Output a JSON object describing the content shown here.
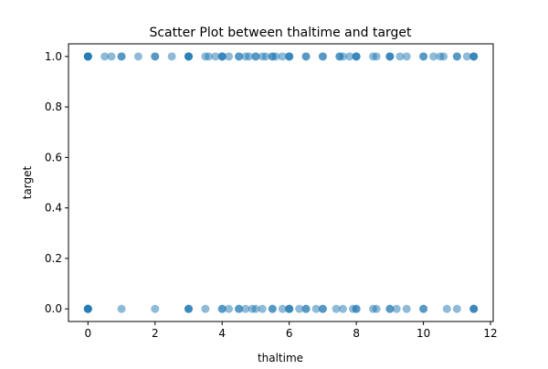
{
  "chart_data": {
    "type": "scatter",
    "title": "Scatter Plot between thaltime and target",
    "xlabel": "thaltime",
    "ylabel": "target",
    "xlim": [
      -0.58,
      12.08
    ],
    "ylim": [
      -0.05,
      1.05
    ],
    "xticks": [
      0,
      2,
      4,
      6,
      8,
      10,
      12
    ],
    "yticks": [
      0.0,
      0.2,
      0.4,
      0.6,
      0.8,
      1.0
    ],
    "xtick_labels": [
      "0",
      "2",
      "4",
      "6",
      "8",
      "10",
      "12"
    ],
    "ytick_labels": [
      "0.0",
      "0.2",
      "0.4",
      "0.6",
      "0.8",
      "1.0"
    ],
    "grid": false,
    "marker_color": "#1f77b4",
    "marker_alpha": 0.5,
    "series": [
      {
        "x": [
          0,
          0,
          0,
          0,
          0,
          0.5,
          0.7,
          1.0,
          1.0,
          1.5,
          2.0,
          2.0,
          2.5,
          3.0,
          3.0,
          3.0,
          3.0,
          3.5,
          3.6,
          3.8,
          4.0,
          4.0,
          4.0,
          4.2,
          4.5,
          4.5,
          4.7,
          4.8,
          5.0,
          5.0,
          5.2,
          5.3,
          5.5,
          5.5,
          5.6,
          5.8,
          6.0,
          6.0,
          6.0,
          6.5,
          6.5,
          7.0,
          7.0,
          7.5,
          7.5,
          7.6,
          7.8,
          8.0,
          8.0,
          8.0,
          8.5,
          8.6,
          9.0,
          9.0,
          9.0,
          9.3,
          9.5,
          10.0,
          10.0,
          10.3,
          10.5,
          10.6,
          11.0,
          11.0,
          11.3,
          11.5,
          11.5,
          11.5
        ],
        "y": [
          1,
          1,
          1,
          1,
          1,
          1,
          1,
          1,
          1,
          1,
          1,
          1,
          1,
          1,
          1,
          1,
          1,
          1,
          1,
          1,
          1,
          1,
          1,
          1,
          1,
          1,
          1,
          1,
          1,
          1,
          1,
          1,
          1,
          1,
          1,
          1,
          1,
          1,
          1,
          1,
          1,
          1,
          1,
          1,
          1,
          1,
          1,
          1,
          1,
          1,
          1,
          1,
          1,
          1,
          1,
          1,
          1,
          1,
          1,
          1,
          1,
          1,
          1,
          1,
          1,
          1,
          1,
          1
        ]
      },
      {
        "x": [
          0,
          0,
          0,
          0,
          0,
          1.0,
          2.0,
          3.0,
          3.0,
          3.0,
          3.5,
          4.0,
          4.0,
          4.2,
          4.5,
          4.5,
          4.7,
          4.9,
          5.0,
          5.2,
          5.5,
          5.5,
          5.8,
          6.0,
          6.0,
          6.0,
          6.3,
          6.5,
          6.5,
          6.8,
          7.0,
          7.0,
          7.4,
          7.6,
          7.9,
          8.0,
          8.0,
          8.5,
          8.6,
          9.0,
          9.0,
          9.2,
          9.5,
          10.0,
          10.0,
          10.7,
          11.0,
          11.5,
          11.5,
          11.5
        ],
        "y": [
          0,
          0,
          0,
          0,
          0,
          0,
          0,
          0,
          0,
          0,
          0,
          0,
          0,
          0,
          0,
          0,
          0,
          0,
          0,
          0,
          0,
          0,
          0,
          0,
          0,
          0,
          0,
          0,
          0,
          0,
          0,
          0,
          0,
          0,
          0,
          0,
          0,
          0,
          0,
          0,
          0,
          0,
          0,
          0,
          0,
          0,
          0,
          0,
          0,
          0
        ]
      }
    ]
  }
}
